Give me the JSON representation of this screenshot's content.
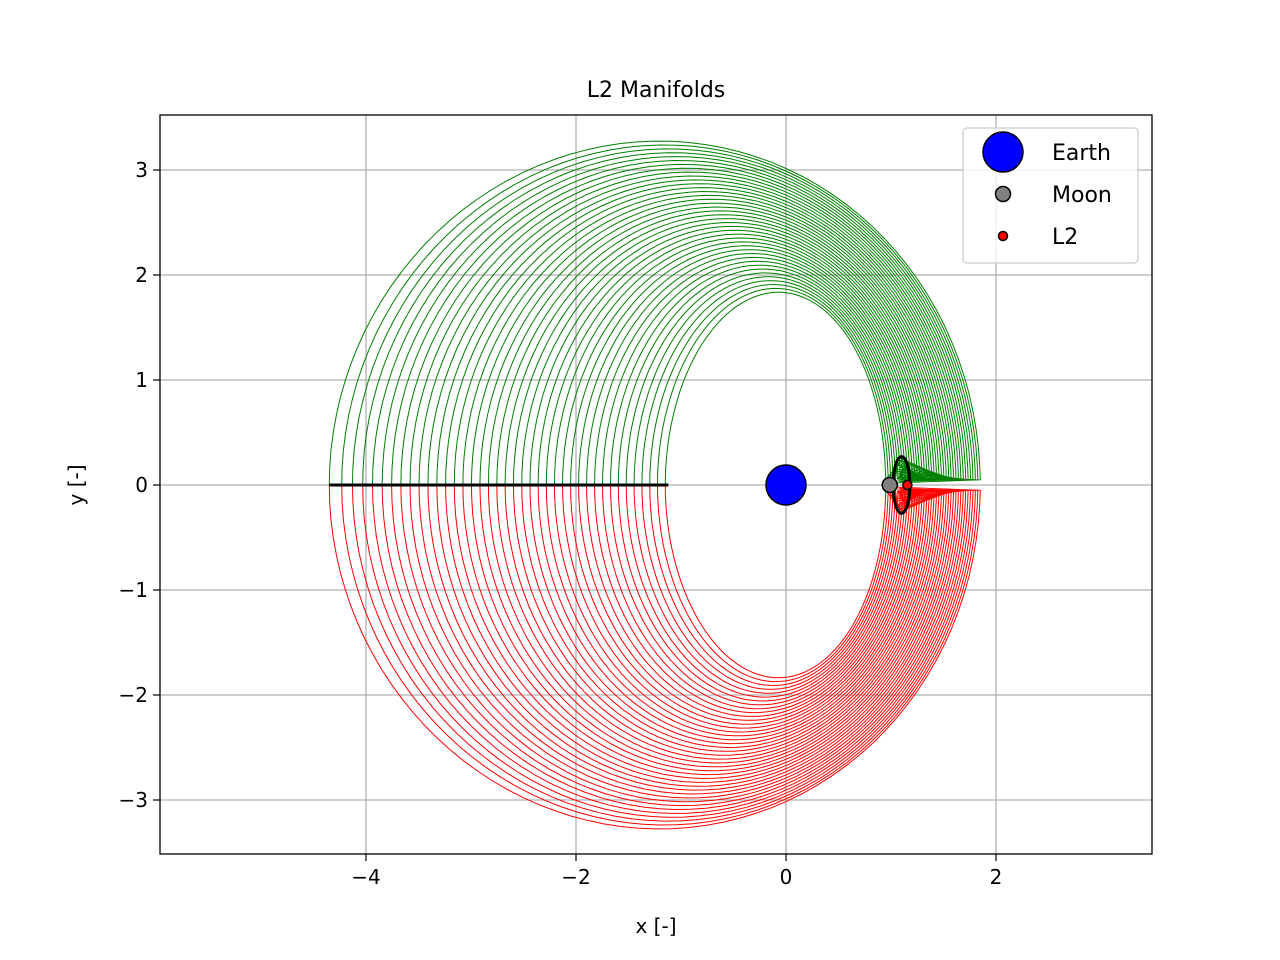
{
  "chart_data": {
    "type": "line",
    "title": "L2 Manifolds",
    "xlabel": "x [-]",
    "ylabel": "y [-]",
    "xlim": [
      -5.9,
      3.5
    ],
    "ylim": [
      -3.5,
      3.5
    ],
    "grid": true,
    "xticks": [
      -4,
      -2,
      0,
      2
    ],
    "xtick_labels": [
      "−4",
      "−2",
      "0",
      "2"
    ],
    "yticks": [
      -3,
      -2,
      -1,
      0,
      1,
      2,
      3
    ],
    "ytick_labels": [
      "−3",
      "−2",
      "−1",
      "0",
      "1",
      "2",
      "3"
    ],
    "legend": {
      "placement": "top-right",
      "entries": [
        {
          "label": "Earth",
          "color": "#0000ff",
          "marker": "large-circle"
        },
        {
          "label": "Moon",
          "color": "#808080",
          "marker": "circle"
        },
        {
          "label": "L2",
          "color": "#ff0000",
          "marker": "small-circle"
        }
      ]
    },
    "bodies": [
      {
        "name": "Earth",
        "x": 0,
        "y": 0,
        "color": "#0000ff"
      },
      {
        "name": "Moon",
        "x": 0.988,
        "y": 0,
        "color": "#808080"
      },
      {
        "name": "L2",
        "x": 1.156,
        "y": 0,
        "color": "#ff0000"
      }
    ],
    "series": [
      {
        "branch": "upper",
        "color": "#008000",
        "trajectories": 40,
        "start_x": [
          1.05,
          1.12
        ],
        "end_x": [
          -4.35,
          -1.15
        ],
        "y_max": 3.2
      },
      {
        "branch": "lower",
        "color": "#ff0000",
        "trajectories": 40,
        "start_x": [
          1.05,
          1.12
        ],
        "end_x": [
          -4.35,
          -1.15
        ],
        "y_min": -3.2
      }
    ],
    "poincare_section": {
      "y": 0,
      "x_range": [
        -4.35,
        -1.12
      ],
      "color": "#000000"
    },
    "lyapunov_orbit": {
      "x_range": [
        1.02,
        1.18
      ],
      "y_range": [
        -0.27,
        0.27
      ],
      "color": "#000000"
    }
  }
}
